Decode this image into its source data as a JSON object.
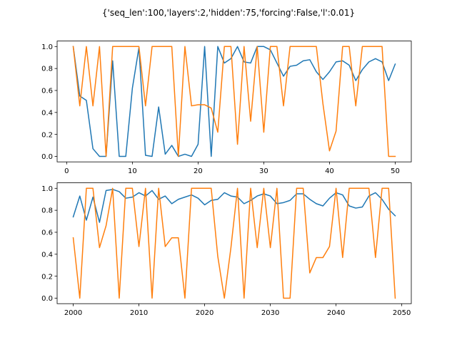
{
  "figure": {
    "title": "{'seq_len':100,'layers':2,'hidden':75,'forcing':False,'l':0.01}"
  },
  "chart_data": [
    {
      "type": "line",
      "title": "",
      "xlabel": "",
      "ylabel": "",
      "xlim": [
        -1.45,
        52.45
      ],
      "ylim": [
        -0.05,
        1.05
      ],
      "xticks": [
        0,
        10,
        20,
        30,
        40,
        50
      ],
      "yticks": [
        0.0,
        0.2,
        0.4,
        0.6,
        0.8,
        1.0
      ],
      "xtick_labels": [
        "0",
        "10",
        "20",
        "30",
        "40",
        "50"
      ],
      "ytick_labels": [
        "0.0",
        "0.2",
        "0.4",
        "0.6",
        "0.8",
        "1.0"
      ],
      "grid": false,
      "series": [
        {
          "color": "#1f77b4",
          "x": [
            1,
            2,
            3,
            4,
            5,
            6,
            7,
            8,
            9,
            10,
            11,
            12,
            13,
            14,
            15,
            16,
            17,
            18,
            19,
            20,
            21,
            22,
            23,
            24,
            25,
            26,
            27,
            28,
            29,
            30,
            31,
            32,
            33,
            34,
            35,
            36,
            37,
            38,
            39,
            40,
            41,
            42,
            43,
            44,
            45,
            46,
            47,
            48,
            49,
            50
          ],
          "values": [
            1.0,
            0.55,
            0.51,
            0.07,
            0.0,
            0.0,
            0.87,
            0.0,
            0.0,
            0.62,
            0.99,
            0.01,
            0.0,
            0.45,
            0.02,
            0.1,
            0.0,
            0.02,
            0.0,
            0.11,
            1.0,
            0.0,
            1.0,
            0.85,
            0.89,
            1.0,
            0.86,
            0.85,
            1.0,
            1.0,
            0.97,
            0.85,
            0.73,
            0.82,
            0.83,
            0.87,
            0.88,
            0.77,
            0.7,
            0.77,
            0.86,
            0.87,
            0.83,
            0.69,
            0.79,
            0.86,
            0.89,
            0.86,
            0.69,
            0.84
          ]
        },
        {
          "color": "#ff7f0e",
          "x": [
            1,
            2,
            3,
            4,
            5,
            6,
            7,
            8,
            9,
            10,
            11,
            12,
            13,
            14,
            15,
            16,
            17,
            18,
            19,
            20,
            21,
            22,
            23,
            24,
            25,
            26,
            27,
            28,
            29,
            30,
            31,
            32,
            33,
            34,
            35,
            36,
            37,
            38,
            39,
            40,
            41,
            42,
            43,
            44,
            45,
            46,
            47,
            48,
            49,
            50
          ],
          "values": [
            1.0,
            0.46,
            1.0,
            0.46,
            1.0,
            0.0,
            1.0,
            1.0,
            1.0,
            1.0,
            1.0,
            0.46,
            1.0,
            1.0,
            1.0,
            1.0,
            0.0,
            1.0,
            0.46,
            0.47,
            0.47,
            0.44,
            0.22,
            1.0,
            1.0,
            0.11,
            1.0,
            0.32,
            1.0,
            0.22,
            1.0,
            1.0,
            0.46,
            1.0,
            1.0,
            1.0,
            1.0,
            1.0,
            0.48,
            0.05,
            0.23,
            1.0,
            1.0,
            0.46,
            1.0,
            1.0,
            1.0,
            1.0,
            0.0,
            0.0
          ]
        }
      ]
    },
    {
      "type": "line",
      "title": "",
      "xlabel": "",
      "ylabel": "",
      "xlim": [
        1997.55,
        2051.45
      ],
      "ylim": [
        -0.05,
        1.05
      ],
      "xticks": [
        2000,
        2010,
        2020,
        2030,
        2040,
        2050
      ],
      "yticks": [
        0.0,
        0.2,
        0.4,
        0.6,
        0.8,
        1.0
      ],
      "xtick_labels": [
        "2000",
        "2010",
        "2020",
        "2030",
        "2040",
        "2050"
      ],
      "ytick_labels": [
        "0.0",
        "0.2",
        "0.4",
        "0.6",
        "0.8",
        "1.0"
      ],
      "grid": false,
      "series": [
        {
          "color": "#1f77b4",
          "x": [
            2000,
            2001,
            2002,
            2003,
            2004,
            2005,
            2006,
            2007,
            2008,
            2009,
            2010,
            2011,
            2012,
            2013,
            2014,
            2015,
            2016,
            2017,
            2018,
            2019,
            2020,
            2021,
            2022,
            2023,
            2024,
            2025,
            2026,
            2027,
            2028,
            2029,
            2030,
            2031,
            2032,
            2033,
            2034,
            2035,
            2036,
            2037,
            2038,
            2039,
            2040,
            2041,
            2042,
            2043,
            2044,
            2045,
            2046,
            2047,
            2048,
            2049
          ],
          "values": [
            0.74,
            0.93,
            0.71,
            0.92,
            0.69,
            0.98,
            0.99,
            0.97,
            0.91,
            0.92,
            0.96,
            0.93,
            0.98,
            0.9,
            0.93,
            0.86,
            0.9,
            0.92,
            0.94,
            0.91,
            0.85,
            0.89,
            0.9,
            0.96,
            0.93,
            0.92,
            0.86,
            0.89,
            0.93,
            0.95,
            0.93,
            0.86,
            0.87,
            0.89,
            0.95,
            0.95,
            0.9,
            0.86,
            0.84,
            0.91,
            0.96,
            0.94,
            0.84,
            0.82,
            0.83,
            0.93,
            0.96,
            0.9,
            0.81,
            0.75
          ]
        },
        {
          "color": "#ff7f0e",
          "x": [
            2000,
            2001,
            2002,
            2003,
            2004,
            2005,
            2006,
            2007,
            2008,
            2009,
            2010,
            2011,
            2012,
            2013,
            2014,
            2015,
            2016,
            2017,
            2018,
            2019,
            2020,
            2021,
            2022,
            2023,
            2024,
            2025,
            2026,
            2027,
            2028,
            2029,
            2030,
            2031,
            2032,
            2033,
            2034,
            2035,
            2036,
            2037,
            2038,
            2039,
            2040,
            2041,
            2042,
            2043,
            2044,
            2045,
            2046,
            2047,
            2048,
            2049
          ],
          "values": [
            0.55,
            0.0,
            1.0,
            1.0,
            0.46,
            0.66,
            1.0,
            0.0,
            1.0,
            1.0,
            0.47,
            1.0,
            0.0,
            1.0,
            0.47,
            0.55,
            0.55,
            0.0,
            1.0,
            1.0,
            1.0,
            1.0,
            0.38,
            0.0,
            0.46,
            1.0,
            0.0,
            1.0,
            0.46,
            1.0,
            0.46,
            1.0,
            0.0,
            0.0,
            1.0,
            1.0,
            0.23,
            0.37,
            0.37,
            0.47,
            1.0,
            0.37,
            1.0,
            1.0,
            1.0,
            1.0,
            0.37,
            1.0,
            1.0,
            0.0
          ]
        }
      ]
    }
  ]
}
